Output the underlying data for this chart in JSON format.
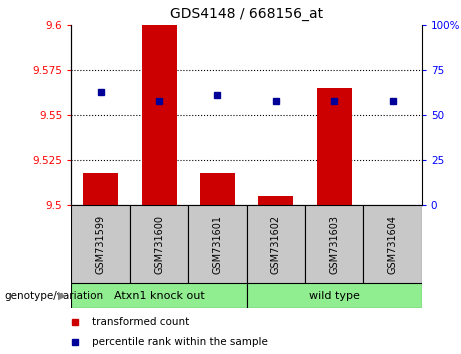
{
  "title": "GDS4148 / 668156_at",
  "samples": [
    "GSM731599",
    "GSM731600",
    "GSM731601",
    "GSM731602",
    "GSM731603",
    "GSM731604"
  ],
  "red_values": [
    9.518,
    9.6,
    9.518,
    9.505,
    9.565,
    9.5
  ],
  "blue_values": [
    9.5625,
    9.558,
    9.561,
    9.558,
    9.558,
    9.558
  ],
  "ylim_left": [
    9.5,
    9.6
  ],
  "ylim_right": [
    0,
    100
  ],
  "yticks_left": [
    9.5,
    9.525,
    9.55,
    9.575,
    9.6
  ],
  "ytick_labels_left": [
    "9.5",
    "9.525",
    "9.55",
    "9.575",
    "9.6"
  ],
  "yticks_right": [
    0,
    25,
    50,
    75,
    100
  ],
  "ytick_labels_right": [
    "0",
    "25",
    "50",
    "75",
    "100%"
  ],
  "group_label": "genotype/variation",
  "groups": [
    {
      "label": "Atxn1 knock out",
      "start": 0,
      "end": 3
    },
    {
      "label": "wild type",
      "start": 3,
      "end": 6
    }
  ],
  "legend_red": "transformed count",
  "legend_blue": "percentile rank within the sample",
  "bar_color": "#CC0000",
  "square_color": "#000099",
  "base_value": 9.5,
  "sample_box_color": "#C8C8C8",
  "group_box_color": "#90EE90"
}
